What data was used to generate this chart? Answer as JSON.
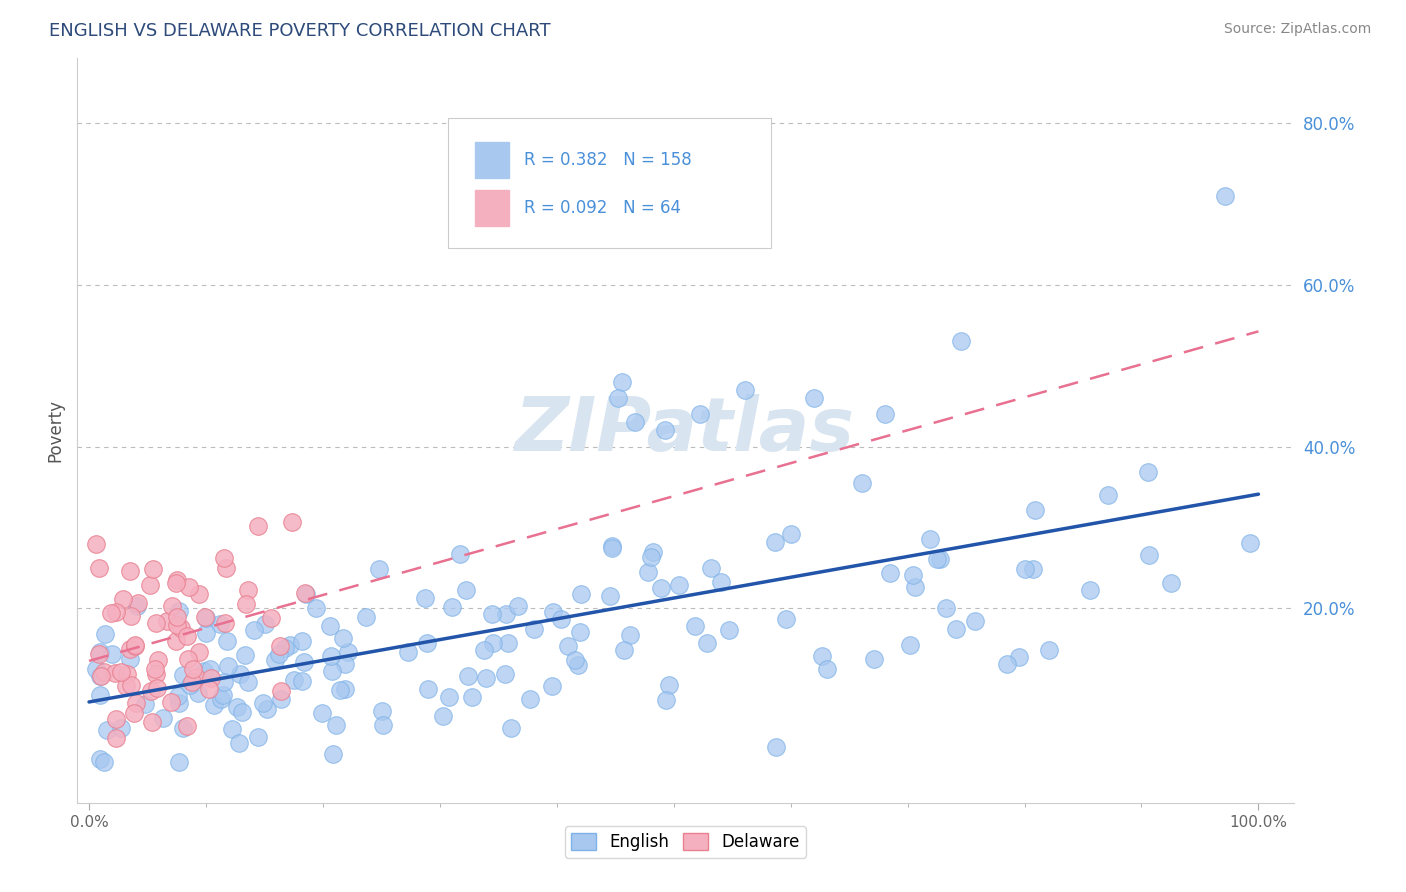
{
  "title": "ENGLISH VS DELAWARE POVERTY CORRELATION CHART",
  "source": "Source: ZipAtlas.com",
  "ylabel": "Poverty",
  "english_color": "#a8c8f0",
  "english_edge_color": "#7fb3e8",
  "delaware_color": "#f5b0c0",
  "delaware_edge_color": "#e88090",
  "english_line_color": "#2255aa",
  "delaware_line_color": "#e87090",
  "english_R": 0.382,
  "english_N": 158,
  "delaware_R": 0.092,
  "delaware_N": 64,
  "legend_text_color": "#4a90d9",
  "legend_box_edge": "#cccccc",
  "title_color": "#2d4a7a",
  "source_color": "#888888",
  "background_color": "#ffffff",
  "grid_color": "#bbbbbb",
  "right_tick_color": "#4a90d9",
  "watermark": "ZIPatlas",
  "watermark_color": "#d8e4f0",
  "xlim_min": -0.01,
  "xlim_max": 1.03,
  "ylim_min": -0.04,
  "ylim_max": 0.88
}
